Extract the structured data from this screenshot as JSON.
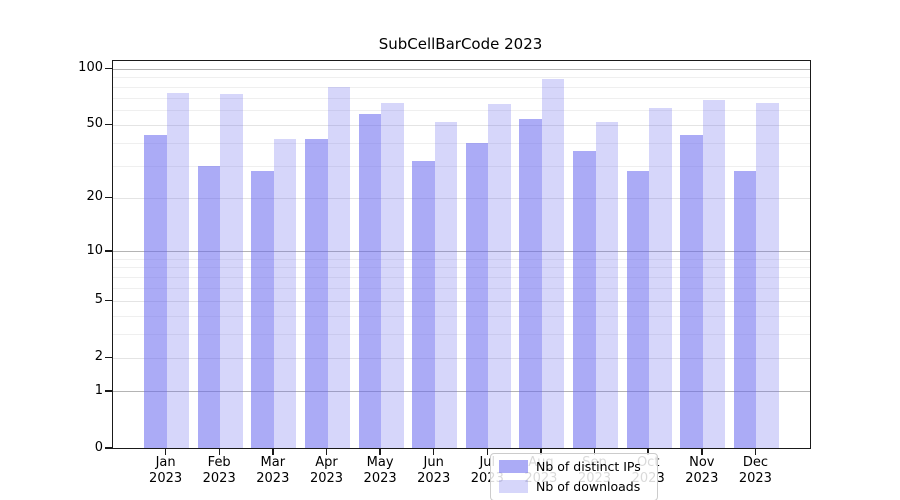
{
  "title": "SubCellBarCode 2023",
  "colors": {
    "bar_base": "#6666ee",
    "series1_fill": "rgba(102,102,238,0.55)",
    "series2_fill": "rgba(102,102,238,0.27)",
    "grid_pow10": "#b4b4b4",
    "grid_major": "#e4e4e4",
    "grid_minor": "#efefef",
    "spine": "#1a1a1a",
    "background": "#ffffff"
  },
  "legend": {
    "items": [
      {
        "label": "Nb of distinct IPs"
      },
      {
        "label": "Nb of downloads"
      }
    ]
  },
  "chart_data": {
    "type": "bar",
    "title": "SubCellBarCode 2023",
    "categories": [
      "Jan 2023",
      "Feb 2023",
      "Mar 2023",
      "Apr 2023",
      "May 2023",
      "Jun 2023",
      "Jul 2023",
      "Aug 2023",
      "Sep 2023",
      "Oct 2023",
      "Nov 2023",
      "Dec 2023"
    ],
    "series": [
      {
        "name": "Nb of distinct IPs",
        "color": "rgba(102,102,238,0.55)",
        "values": [
          44,
          30,
          28,
          42,
          57,
          32,
          40,
          54,
          36,
          28,
          44,
          28
        ]
      },
      {
        "name": "Nb of downloads",
        "color": "rgba(102,102,238,0.27)",
        "values": [
          74,
          73,
          42,
          80,
          66,
          52,
          65,
          88,
          52,
          62,
          68,
          66
        ]
      }
    ],
    "xlabel": "",
    "ylabel": "",
    "yscale": "log1p",
    "y_major_ticks": [
      0,
      1,
      2,
      5,
      10,
      20,
      50,
      100
    ],
    "y_minor_ticks": [
      3,
      4,
      6,
      7,
      8,
      9,
      30,
      40,
      60,
      70,
      80,
      90
    ],
    "ylim": [
      0,
      110
    ],
    "grid": true,
    "legend_position": "lower center"
  }
}
